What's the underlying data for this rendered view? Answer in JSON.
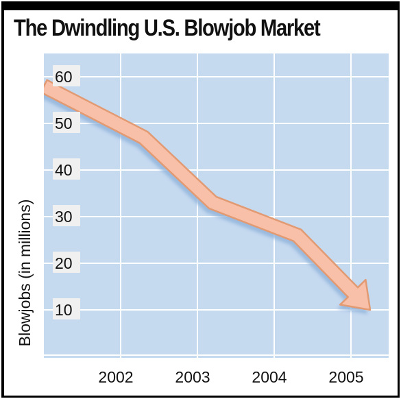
{
  "chart_data": {
    "type": "line",
    "title": "The Dwindling U.S. Blowjob Market",
    "ylabel": "Blowjobs (in millions)",
    "xlabel": "",
    "x_ticks": [
      "2002",
      "2003",
      "2004",
      "2005"
    ],
    "y_ticks": [
      10,
      20,
      30,
      40,
      50,
      60
    ],
    "ylim": [
      5,
      62
    ],
    "grid": true,
    "legend": "none",
    "series": [
      {
        "x": [
          2001.0,
          2002.3,
          2003.2,
          2004.3,
          2005.25
        ],
        "values": [
          58,
          47,
          33,
          26,
          10
        ]
      }
    ],
    "colors": {
      "plot_background": "#c5d9ef",
      "grid": "#ffffff",
      "arrow_fill": "#f9c0a9",
      "arrow_stroke": "#e29a72",
      "arrow_shadow": "#8fb2da",
      "tick_box": "#f0f0f0"
    }
  }
}
